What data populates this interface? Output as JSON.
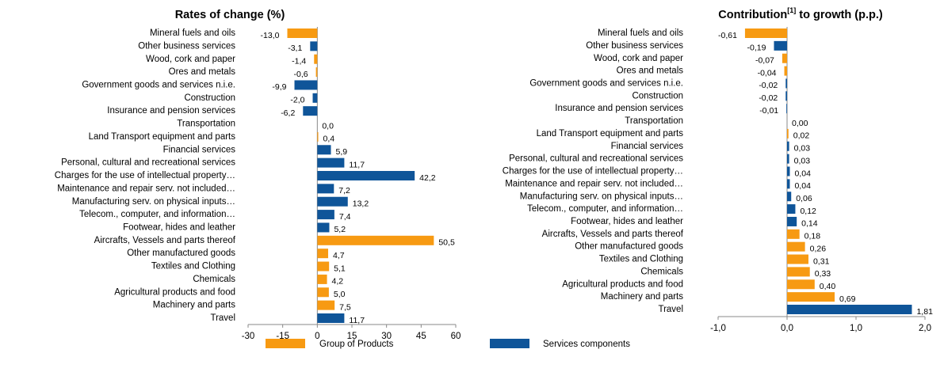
{
  "chart_data": [
    {
      "type": "hbar",
      "title": "Rates of change (%)",
      "categories": [
        "Mineral fuels and oils",
        "Other business services",
        "Wood, cork and paper",
        "Ores and metals",
        "Government goods and services n.i.e.",
        "Construction",
        "Insurance and pension services",
        "Transportation",
        "Land Transport equipment and parts",
        "Financial services",
        "Personal, cultural and recreational services",
        "Charges for the use of intellectual property…",
        "Maintenance and repair serv. not included…",
        "Manufacturing serv. on physical inputs…",
        "Telecom., computer, and information…",
        "Footwear, hides and leather",
        "Aircrafts, Vessels and parts thereof",
        "Other manufactured goods",
        "Textiles and Clothing",
        "Chemicals",
        "Agricultural products and food",
        "Machinery and parts",
        "Travel"
      ],
      "values": [
        -13.0,
        -3.1,
        -1.4,
        -0.6,
        -9.9,
        -2.0,
        -6.2,
        0.0,
        0.4,
        5.9,
        11.7,
        42.2,
        7.2,
        13.2,
        7.4,
        5.2,
        50.5,
        4.7,
        5.1,
        4.2,
        5.0,
        7.5,
        11.7
      ],
      "value_labels": [
        "-13,0",
        "-3,1",
        "-1,4",
        "-0,6",
        "-9,9",
        "-2,0",
        "-6,2",
        "0,0",
        "0,4",
        "5,9",
        "11,7",
        "42,2",
        "7,2",
        "13,2",
        "7,4",
        "5,2",
        "50,5",
        "4,7",
        "5,1",
        "4,2",
        "5,0",
        "7,5",
        "11,7"
      ],
      "colors": [
        "#f79a12",
        "#0f5599",
        "#f79a12",
        "#f79a12",
        "#0f5599",
        "#0f5599",
        "#0f5599",
        "#0f5599",
        "#f79a12",
        "#0f5599",
        "#0f5599",
        "#0f5599",
        "#0f5599",
        "#0f5599",
        "#0f5599",
        "#0f5599",
        "#f79a12",
        "#f79a12",
        "#f79a12",
        "#f79a12",
        "#f79a12",
        "#f79a12",
        "#0f5599"
      ],
      "xlim": [
        -30,
        60
      ],
      "xticks": [
        -30,
        -15,
        0,
        15,
        30,
        45,
        60
      ]
    },
    {
      "type": "hbar",
      "title": "Contribution",
      "title_note": "[1]",
      "title_rest": " to growth (p.p.)",
      "categories": [
        "Mineral fuels and oils",
        "Other business services",
        "Wood, cork and paper",
        "Ores and metals",
        "Government goods and services n.i.e.",
        "Construction",
        "Insurance and pension services",
        "Transportation",
        "Land Transport equipment and parts",
        "Financial services",
        "Personal, cultural and recreational services",
        "Charges for the use of intellectual property…",
        "Maintenance and repair serv. not included…",
        "Manufacturing serv. on physical inputs…",
        "Telecom., computer, and information…",
        "Footwear, hides and leather",
        "Aircrafts, Vessels and parts thereof",
        "Other manufactured goods",
        "Textiles and Clothing",
        "Chemicals",
        "Agricultural products and food",
        "Machinery and parts",
        "Travel"
      ],
      "values": [
        -0.61,
        -0.19,
        -0.07,
        -0.04,
        -0.02,
        -0.02,
        -0.01,
        0.0,
        0.02,
        0.03,
        0.03,
        0.04,
        0.04,
        0.06,
        0.12,
        0.14,
        0.18,
        0.26,
        0.31,
        0.33,
        0.4,
        0.69,
        1.81
      ],
      "value_labels": [
        "-0,61",
        "-0,19",
        "-0,07",
        "-0,04",
        "-0,02",
        "-0,02",
        "-0,01",
        "0,00",
        "0,02",
        "0,03",
        "0,03",
        "0,04",
        "0,04",
        "0,06",
        "0,12",
        "0,14",
        "0,18",
        "0,26",
        "0,31",
        "0,33",
        "0,40",
        "0,69",
        "1,81"
      ],
      "colors": [
        "#f79a12",
        "#0f5599",
        "#f79a12",
        "#f79a12",
        "#0f5599",
        "#0f5599",
        "#0f5599",
        "#0f5599",
        "#f79a12",
        "#0f5599",
        "#0f5599",
        "#0f5599",
        "#0f5599",
        "#0f5599",
        "#0f5599",
        "#0f5599",
        "#f79a12",
        "#f79a12",
        "#f79a12",
        "#f79a12",
        "#f79a12",
        "#f79a12",
        "#0f5599"
      ],
      "xlim": [
        -1,
        2
      ],
      "xticks": [
        {
          "value": -1,
          "label": "-1,0"
        },
        {
          "value": 0,
          "label": "0,0"
        },
        {
          "value": 1,
          "label": "1,0"
        },
        {
          "value": 2,
          "label": "2,0"
        }
      ]
    }
  ],
  "legend": [
    {
      "name": "Group of Products",
      "color": "#f79a12"
    },
    {
      "name": "Services components",
      "color": "#0f5599"
    }
  ]
}
